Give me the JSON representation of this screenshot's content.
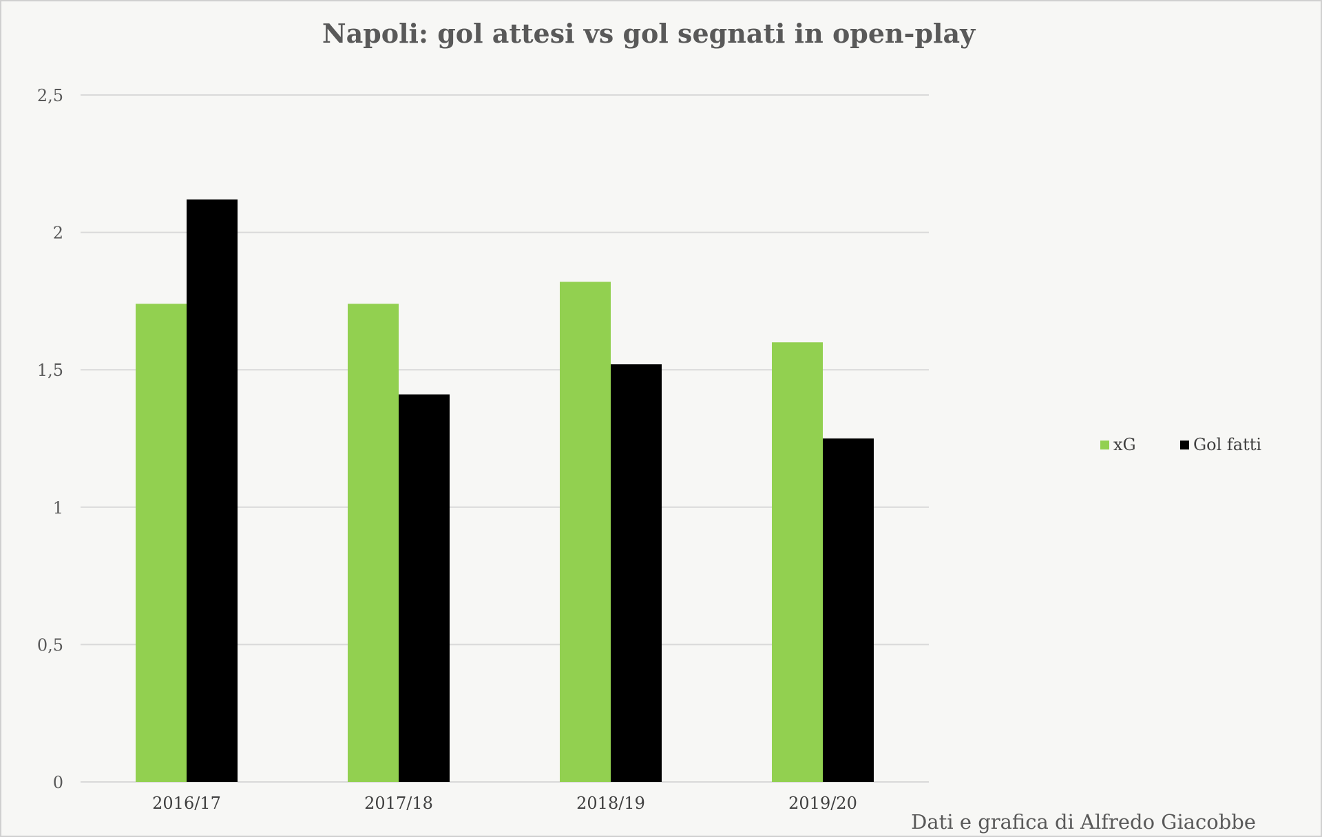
{
  "chart_data": {
    "type": "bar",
    "title": "Napoli: gol attesi vs gol segnati in open-play",
    "categories": [
      "2016/17",
      "2017/18",
      "2018/19",
      "2019/20"
    ],
    "series": [
      {
        "name": "xG",
        "color": "#92d050",
        "values": [
          1.74,
          1.74,
          1.82,
          1.6
        ]
      },
      {
        "name": "Gol fatti",
        "color": "#000000",
        "values": [
          2.12,
          1.41,
          1.52,
          1.25
        ]
      }
    ],
    "ylim": [
      0,
      2.5
    ],
    "yticks": [
      0,
      0.5,
      1,
      1.5,
      2,
      2.5
    ],
    "ytick_labels": [
      "0",
      "0,5",
      "1",
      "1,5",
      "2",
      "2,5"
    ],
    "xlabel": "",
    "ylabel": "",
    "grid": true,
    "legend_position": "right",
    "gridline_color": "#d9d9d9",
    "credit": "Dati e grafica di Alfredo Giacobbe"
  }
}
